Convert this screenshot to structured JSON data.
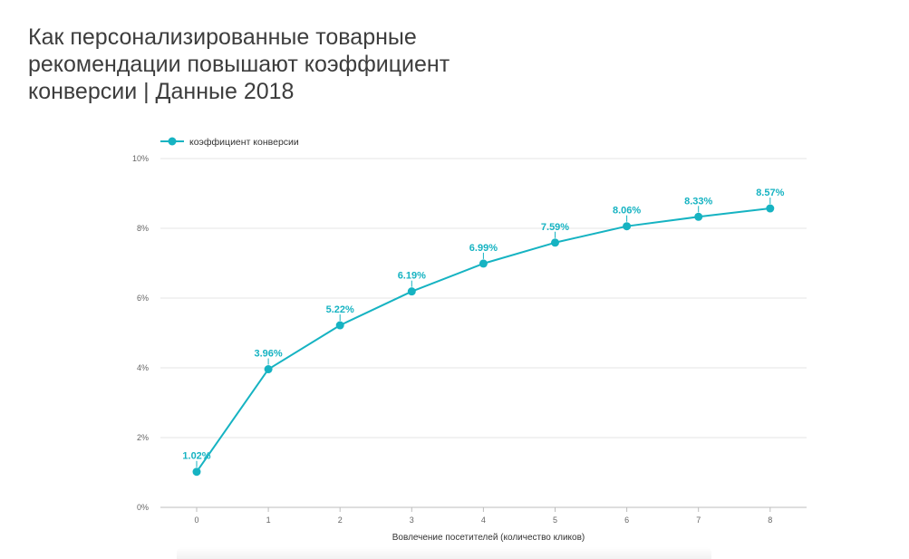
{
  "title": "Как персонализированные товарные рекомендации повышают коэффициент конверсии | Данные 2018",
  "colors": {
    "series": "#16b3c2",
    "grid": "#e6e6e6",
    "axis": "#bdbdbd"
  },
  "chart_data": {
    "type": "line",
    "title": "Как персонализированные товарные рекомендации повышают коэффициент конверсии | Данные 2018",
    "xlabel": "Вовлечение посетителей (количество кликов)",
    "ylabel": "",
    "categories": [
      "0",
      "1",
      "2",
      "3",
      "4",
      "5",
      "6",
      "7",
      "8"
    ],
    "series": [
      {
        "name": "коэффициент конверсии",
        "values": [
          1.02,
          3.96,
          5.22,
          6.19,
          6.99,
          7.59,
          8.06,
          8.33,
          8.57
        ],
        "labels": [
          "1.02%",
          "3.96%",
          "5.22%",
          "6.19%",
          "6.99%",
          "7.59%",
          "8.06%",
          "8.33%",
          "8.57%"
        ]
      }
    ],
    "ylim": [
      0,
      10
    ],
    "yticks": [
      0,
      2,
      4,
      6,
      8,
      10
    ],
    "ytick_labels": [
      "0%",
      "2%",
      "4%",
      "6%",
      "8%",
      "10%"
    ],
    "grid": true,
    "legend_position": "top-left"
  }
}
